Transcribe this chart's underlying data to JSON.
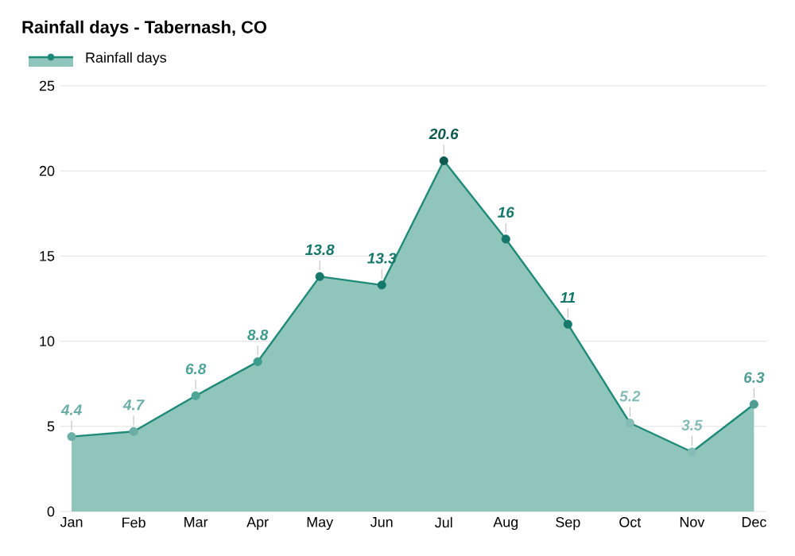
{
  "chart_data": {
    "type": "area",
    "title": "Rainfall days - Tabernash, CO",
    "categories": [
      "Jan",
      "Feb",
      "Mar",
      "Apr",
      "May",
      "Jun",
      "Jul",
      "Aug",
      "Sep",
      "Oct",
      "Nov",
      "Dec"
    ],
    "series": [
      {
        "name": "Rainfall days",
        "color": "#1f8a78",
        "values": [
          4.4,
          4.7,
          6.8,
          8.8,
          13.8,
          13.3,
          20.6,
          16,
          11,
          5.2,
          3.5,
          6.3
        ],
        "colors": [
          "#6aaea6",
          "#6aaea6",
          "#4fa597",
          "#3d9c8c",
          "#16786a",
          "#16786a",
          "#0c5a4f",
          "#16786a",
          "#16786a",
          "#85bdb6",
          "#85bdb6",
          "#4e9e93"
        ]
      }
    ],
    "ylim": [
      0,
      25
    ],
    "yticks": [
      0,
      5,
      10,
      15,
      20,
      25
    ],
    "grid": "y",
    "legend": "top left",
    "marker": "circle",
    "data_labels": true
  }
}
